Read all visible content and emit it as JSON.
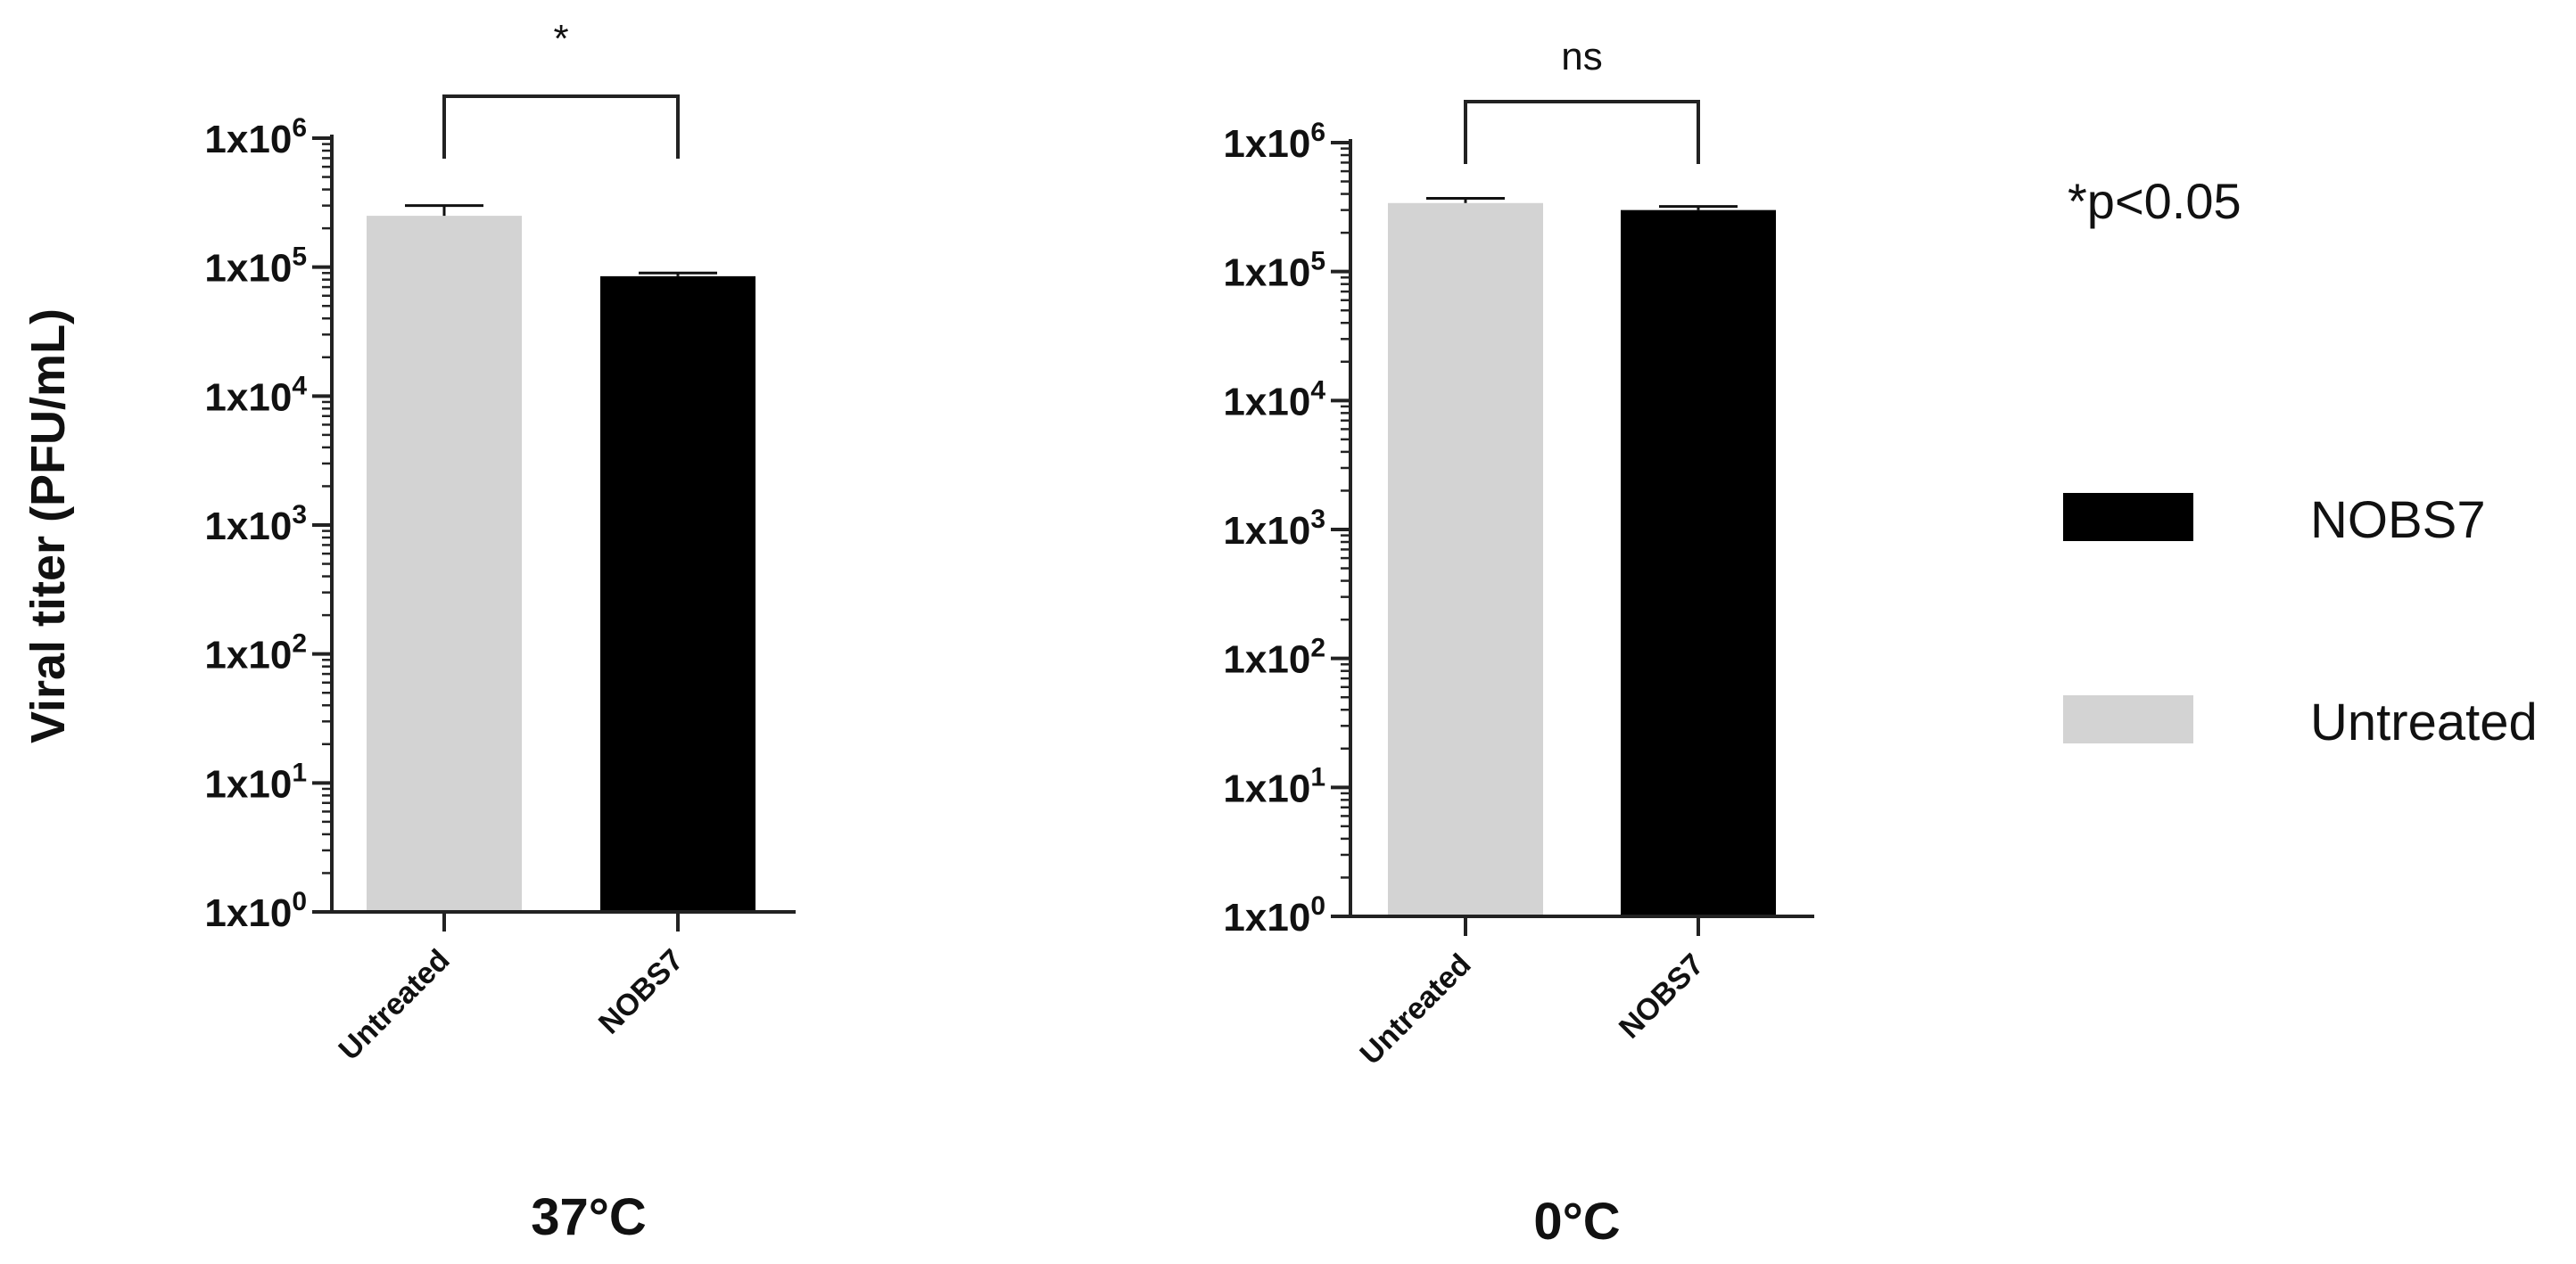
{
  "chart_data": [
    {
      "type": "bar",
      "title": "37°C",
      "ylabel": "Viral titer (PFU/mL)",
      "yscale": "log",
      "ylim": [
        1,
        1000000
      ],
      "ytick_labels": [
        {
          "base": "1x10",
          "exp": "0"
        },
        {
          "base": "1x10",
          "exp": "1"
        },
        {
          "base": "1x10",
          "exp": "2"
        },
        {
          "base": "1x10",
          "exp": "3"
        },
        {
          "base": "1x10",
          "exp": "4"
        },
        {
          "base": "1x10",
          "exp": "5"
        },
        {
          "base": "1x10",
          "exp": "6"
        }
      ],
      "categories": [
        "Untreated",
        "NOBS7"
      ],
      "values": [
        250000,
        85000
      ],
      "error_upper": [
        300000,
        90000
      ],
      "colors": [
        "#d3d3d3",
        "#000000"
      ],
      "significance": "*"
    },
    {
      "type": "bar",
      "title": "0°C",
      "yscale": "log",
      "ylim": [
        1,
        1000000
      ],
      "ytick_labels": [
        {
          "base": "1x10",
          "exp": "0"
        },
        {
          "base": "1x10",
          "exp": "1"
        },
        {
          "base": "1x10",
          "exp": "2"
        },
        {
          "base": "1x10",
          "exp": "3"
        },
        {
          "base": "1x10",
          "exp": "4"
        },
        {
          "base": "1x10",
          "exp": "5"
        },
        {
          "base": "1x10",
          "exp": "6"
        }
      ],
      "categories": [
        "Untreated",
        "NOBS7"
      ],
      "values": [
        340000,
        300000
      ],
      "error_upper": [
        370000,
        320000
      ],
      "colors": [
        "#d3d3d3",
        "#000000"
      ],
      "significance": "ns"
    }
  ],
  "legend": {
    "items": [
      {
        "label": "NOBS7",
        "color": "#000000"
      },
      {
        "label": "Untreated",
        "color": "#d3d3d3"
      }
    ]
  },
  "note": "*p<0.05"
}
